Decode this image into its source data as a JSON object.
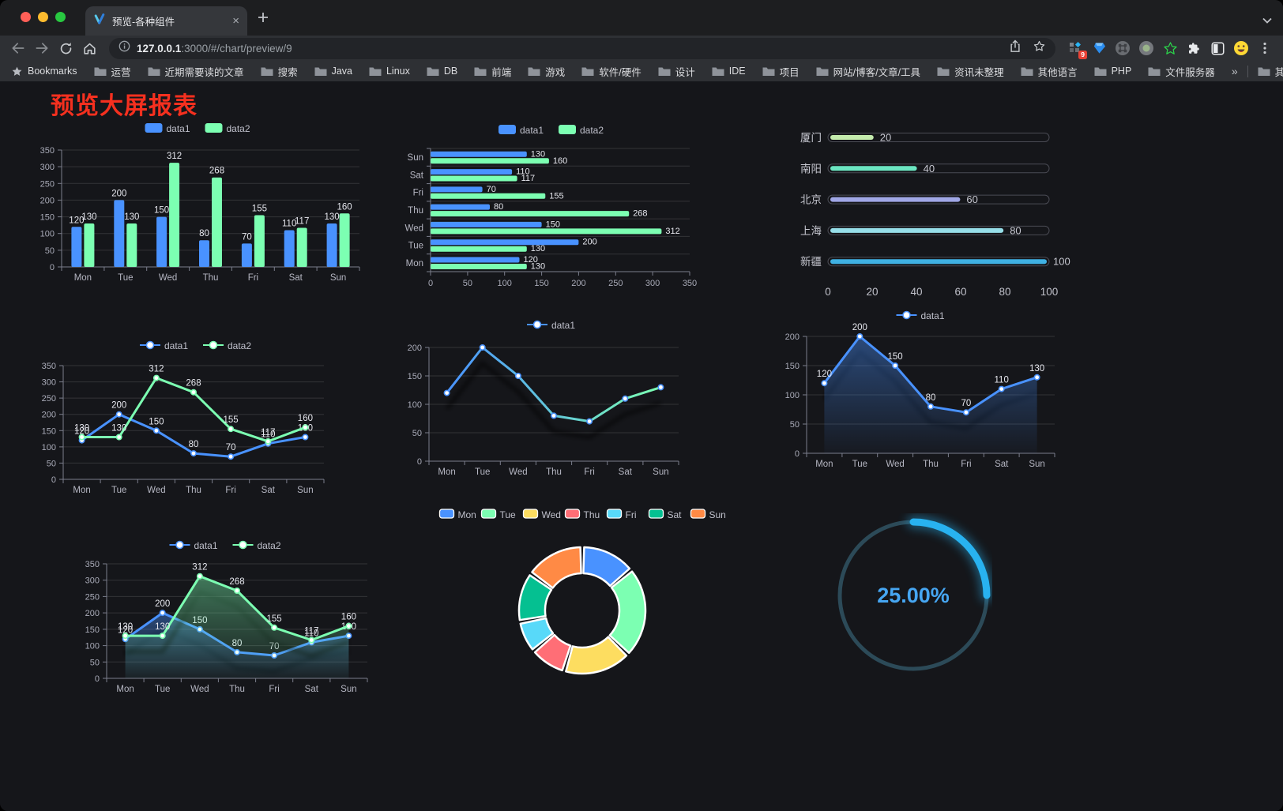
{
  "browser": {
    "tab_title": "预览-各种组件",
    "url_host": "127.0.0.1",
    "url_rest": ":3000/#/chart/preview/9",
    "bookmarks_label": "Bookmarks",
    "bookmarks": [
      "运营",
      "近期需要读的文章",
      "搜索",
      "Java",
      "Linux",
      "DB",
      "前端",
      "游戏",
      "软件/硬件",
      "设计",
      "IDE",
      "项目",
      "网站/博客/文章/工具",
      "资讯未整理",
      "其他语言",
      "PHP",
      "文件服务器"
    ],
    "bookmarks_overflow": "»",
    "other_bookmarks": "其他书签",
    "extension_badge": "9"
  },
  "page": {
    "title": "预览大屏报表",
    "title_color": "#f5301f"
  },
  "chart_data": [
    {
      "id": "bar-vertical",
      "type": "bar",
      "categories": [
        "Mon",
        "Tue",
        "Wed",
        "Thu",
        "Fri",
        "Sat",
        "Sun"
      ],
      "series": [
        {
          "name": "data1",
          "color": "#4992ff",
          "values": [
            120,
            200,
            150,
            80,
            70,
            110,
            130
          ]
        },
        {
          "name": "data2",
          "color": "#7cffb2",
          "values": [
            130,
            130,
            312,
            268,
            155,
            117,
            160
          ]
        }
      ],
      "ylim": [
        0,
        350
      ],
      "ytick_step": 50,
      "labels": true
    },
    {
      "id": "bar-horizontal",
      "type": "bar-horizontal",
      "categories": [
        "Mon",
        "Tue",
        "Wed",
        "Thu",
        "Fri",
        "Sat",
        "Sun"
      ],
      "series": [
        {
          "name": "data1",
          "color": "#4992ff",
          "values": [
            120,
            200,
            150,
            80,
            70,
            110,
            130
          ]
        },
        {
          "name": "data2",
          "color": "#7cffb2",
          "values": [
            130,
            130,
            312,
            268,
            155,
            117,
            160
          ]
        }
      ],
      "xlim": [
        0,
        350
      ],
      "xtick_step": 50,
      "labels": true
    },
    {
      "id": "city-progress",
      "type": "progress",
      "items": [
        {
          "label": "厦门",
          "value": 20,
          "color": "#c4ebad"
        },
        {
          "label": "南阳",
          "value": 40,
          "color": "#6be6c1"
        },
        {
          "label": "北京",
          "value": 60,
          "color": "#a0a7e6"
        },
        {
          "label": "上海",
          "value": 80,
          "color": "#96dee8"
        },
        {
          "label": "新疆",
          "value": 100,
          "color": "#3fb1e3"
        }
      ],
      "xlim": [
        0,
        100
      ],
      "ticks": [
        0,
        20,
        40,
        60,
        80,
        100
      ]
    },
    {
      "id": "line-basic",
      "type": "line",
      "categories": [
        "Mon",
        "Tue",
        "Wed",
        "Thu",
        "Fri",
        "Sat",
        "Sun"
      ],
      "series": [
        {
          "name": "data1",
          "color": "#4992ff",
          "values": [
            120,
            200,
            150,
            80,
            70,
            110,
            130
          ]
        },
        {
          "name": "data2",
          "color": "#7cffb2",
          "values": [
            130,
            130,
            312,
            268,
            155,
            117,
            160
          ]
        }
      ],
      "ylim": [
        0,
        350
      ],
      "ytick_step": 50,
      "labels": true
    },
    {
      "id": "line-gradient",
      "type": "line",
      "categories": [
        "Mon",
        "Tue",
        "Wed",
        "Thu",
        "Fri",
        "Sat",
        "Sun"
      ],
      "series": [
        {
          "name": "data1",
          "color_gradient": [
            "#4992ff",
            "#7cffb2"
          ],
          "values": [
            120,
            200,
            150,
            80,
            70,
            110,
            130
          ]
        }
      ],
      "ylim": [
        0,
        200
      ],
      "ytick_step": 50,
      "labels": false,
      "shadow": true
    },
    {
      "id": "line-area",
      "type": "line",
      "categories": [
        "Mon",
        "Tue",
        "Wed",
        "Thu",
        "Fri",
        "Sat",
        "Sun"
      ],
      "series": [
        {
          "name": "data1",
          "color": "#4992ff",
          "values": [
            120,
            200,
            150,
            80,
            70,
            110,
            130
          ],
          "area": true
        }
      ],
      "ylim": [
        0,
        200
      ],
      "ytick_step": 50,
      "labels": true,
      "shadow": true
    },
    {
      "id": "line-area-double",
      "type": "line",
      "categories": [
        "Mon",
        "Tue",
        "Wed",
        "Thu",
        "Fri",
        "Sat",
        "Sun"
      ],
      "series": [
        {
          "name": "data1",
          "color": "#4992ff",
          "values": [
            120,
            200,
            150,
            80,
            70,
            110,
            130
          ],
          "area": true
        },
        {
          "name": "data2",
          "color": "#7cffb2",
          "values": [
            130,
            130,
            312,
            268,
            155,
            117,
            160
          ],
          "area": true
        }
      ],
      "ylim": [
        0,
        350
      ],
      "ytick_step": 50,
      "labels": true,
      "shadow": true
    },
    {
      "id": "donut",
      "type": "pie",
      "categories": [
        "Mon",
        "Tue",
        "Wed",
        "Thu",
        "Fri",
        "Sat",
        "Sun"
      ],
      "values": [
        120,
        200,
        150,
        80,
        70,
        110,
        130
      ],
      "colors": [
        "#4992ff",
        "#7cffb2",
        "#fddd60",
        "#ff6e76",
        "#58d9f9",
        "#05c091",
        "#ff8a45"
      ]
    },
    {
      "id": "gauge",
      "type": "gauge",
      "value": 25,
      "label": "25.00%",
      "color": "#28b2f0",
      "track_color": "#2c4a58",
      "text_color": "#46a6f2"
    }
  ]
}
